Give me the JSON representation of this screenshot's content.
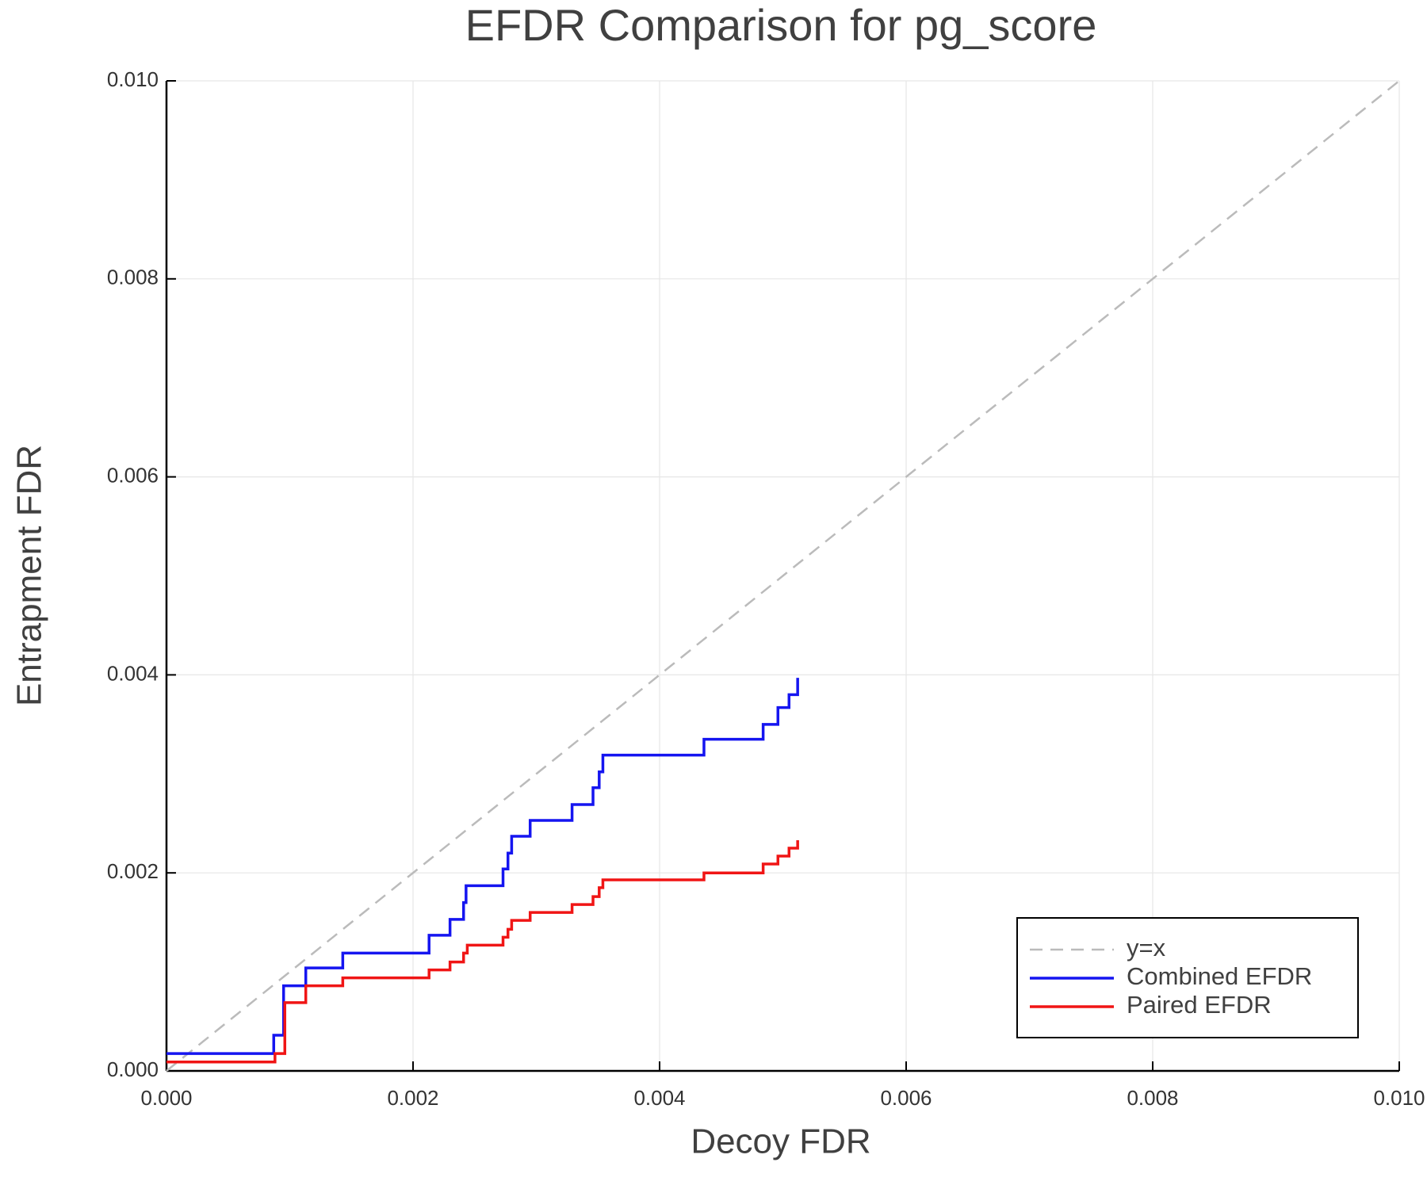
{
  "chart_data": {
    "type": "line",
    "title": "EFDR Comparison for pg_score",
    "x_label": "Decoy FDR",
    "y_label": "Entrapment FDR",
    "xlim": [
      0,
      0.01
    ],
    "ylim": [
      0,
      0.01
    ],
    "xticks": [
      {
        "value": 0,
        "label": "0.000"
      },
      {
        "value": 0.002,
        "label": "0.002"
      },
      {
        "value": 0.004,
        "label": "0.004"
      },
      {
        "value": 0.006,
        "label": "0.006"
      },
      {
        "value": 0.008,
        "label": "0.008"
      },
      {
        "value": 0.01,
        "label": "0.010"
      }
    ],
    "yticks": [
      {
        "value": 0,
        "label": "0.000"
      },
      {
        "value": 0.002,
        "label": "0.002"
      },
      {
        "value": 0.004,
        "label": "0.004"
      },
      {
        "value": 0.006,
        "label": "0.006"
      },
      {
        "value": 0.008,
        "label": "0.008"
      },
      {
        "value": 0.01,
        "label": "0.010"
      }
    ],
    "grid": true,
    "legend": "lower right",
    "series": [
      {
        "name": "y=x",
        "color": "#bbbbbb",
        "dashed": true,
        "x": [
          0,
          0.01
        ],
        "values": [
          0,
          0.01
        ]
      },
      {
        "name": "Combined EFDR",
        "color": "#1515f0",
        "dashed": false,
        "x": [
          0,
          0.00087,
          0.00087,
          0.00095,
          0.00095,
          0.00113,
          0.00113,
          0.00143,
          0.00143,
          0.00213,
          0.00213,
          0.0023,
          0.0023,
          0.00241,
          0.00241,
          0.00243,
          0.00243,
          0.00273,
          0.00273,
          0.00277,
          0.00277,
          0.0028,
          0.0028,
          0.00295,
          0.00295,
          0.00329,
          0.00329,
          0.00346,
          0.00346,
          0.00351,
          0.00351,
          0.00354,
          0.00354,
          0.00436,
          0.00436,
          0.00484,
          0.00484,
          0.00496,
          0.00496,
          0.00505,
          0.00505,
          0.00512,
          0.00512
        ],
        "values": [
          0.000175,
          0.000175,
          0.00036,
          0.00036,
          0.00086,
          0.00086,
          0.00104,
          0.00104,
          0.00119,
          0.00119,
          0.00137,
          0.00137,
          0.00153,
          0.00153,
          0.0017,
          0.0017,
          0.00187,
          0.00187,
          0.00204,
          0.00204,
          0.0022,
          0.0022,
          0.00237,
          0.00237,
          0.00253,
          0.00253,
          0.00269,
          0.00269,
          0.00286,
          0.00286,
          0.00302,
          0.00302,
          0.00319,
          0.00319,
          0.00335,
          0.00335,
          0.0035,
          0.0035,
          0.00367,
          0.00367,
          0.0038,
          0.0038,
          0.00397
        ]
      },
      {
        "name": "Paired EFDR",
        "color": "#f01515",
        "dashed": false,
        "x": [
          0,
          0.00088,
          0.00088,
          0.00096,
          0.00096,
          0.00113,
          0.00113,
          0.00143,
          0.00143,
          0.00213,
          0.00213,
          0.0023,
          0.0023,
          0.00241,
          0.00241,
          0.00244,
          0.00244,
          0.00273,
          0.00273,
          0.00277,
          0.00277,
          0.0028,
          0.0028,
          0.00295,
          0.00295,
          0.00329,
          0.00329,
          0.00346,
          0.00346,
          0.00351,
          0.00351,
          0.00354,
          0.00354,
          0.00436,
          0.00436,
          0.00484,
          0.00484,
          0.00496,
          0.00496,
          0.00505,
          0.00505,
          0.00512,
          0.00512
        ],
        "values": [
          9e-05,
          9e-05,
          0.000175,
          0.000175,
          0.00069,
          0.00069,
          0.00086,
          0.00086,
          0.00094,
          0.00094,
          0.00102,
          0.00102,
          0.0011,
          0.0011,
          0.00119,
          0.00119,
          0.00127,
          0.00127,
          0.00135,
          0.00135,
          0.00143,
          0.00143,
          0.00152,
          0.00152,
          0.0016,
          0.0016,
          0.00168,
          0.00168,
          0.00176,
          0.00176,
          0.00185,
          0.00185,
          0.00193,
          0.00193,
          0.002,
          0.002,
          0.00209,
          0.00209,
          0.00217,
          0.00217,
          0.00225,
          0.00225,
          0.00233
        ]
      }
    ]
  }
}
